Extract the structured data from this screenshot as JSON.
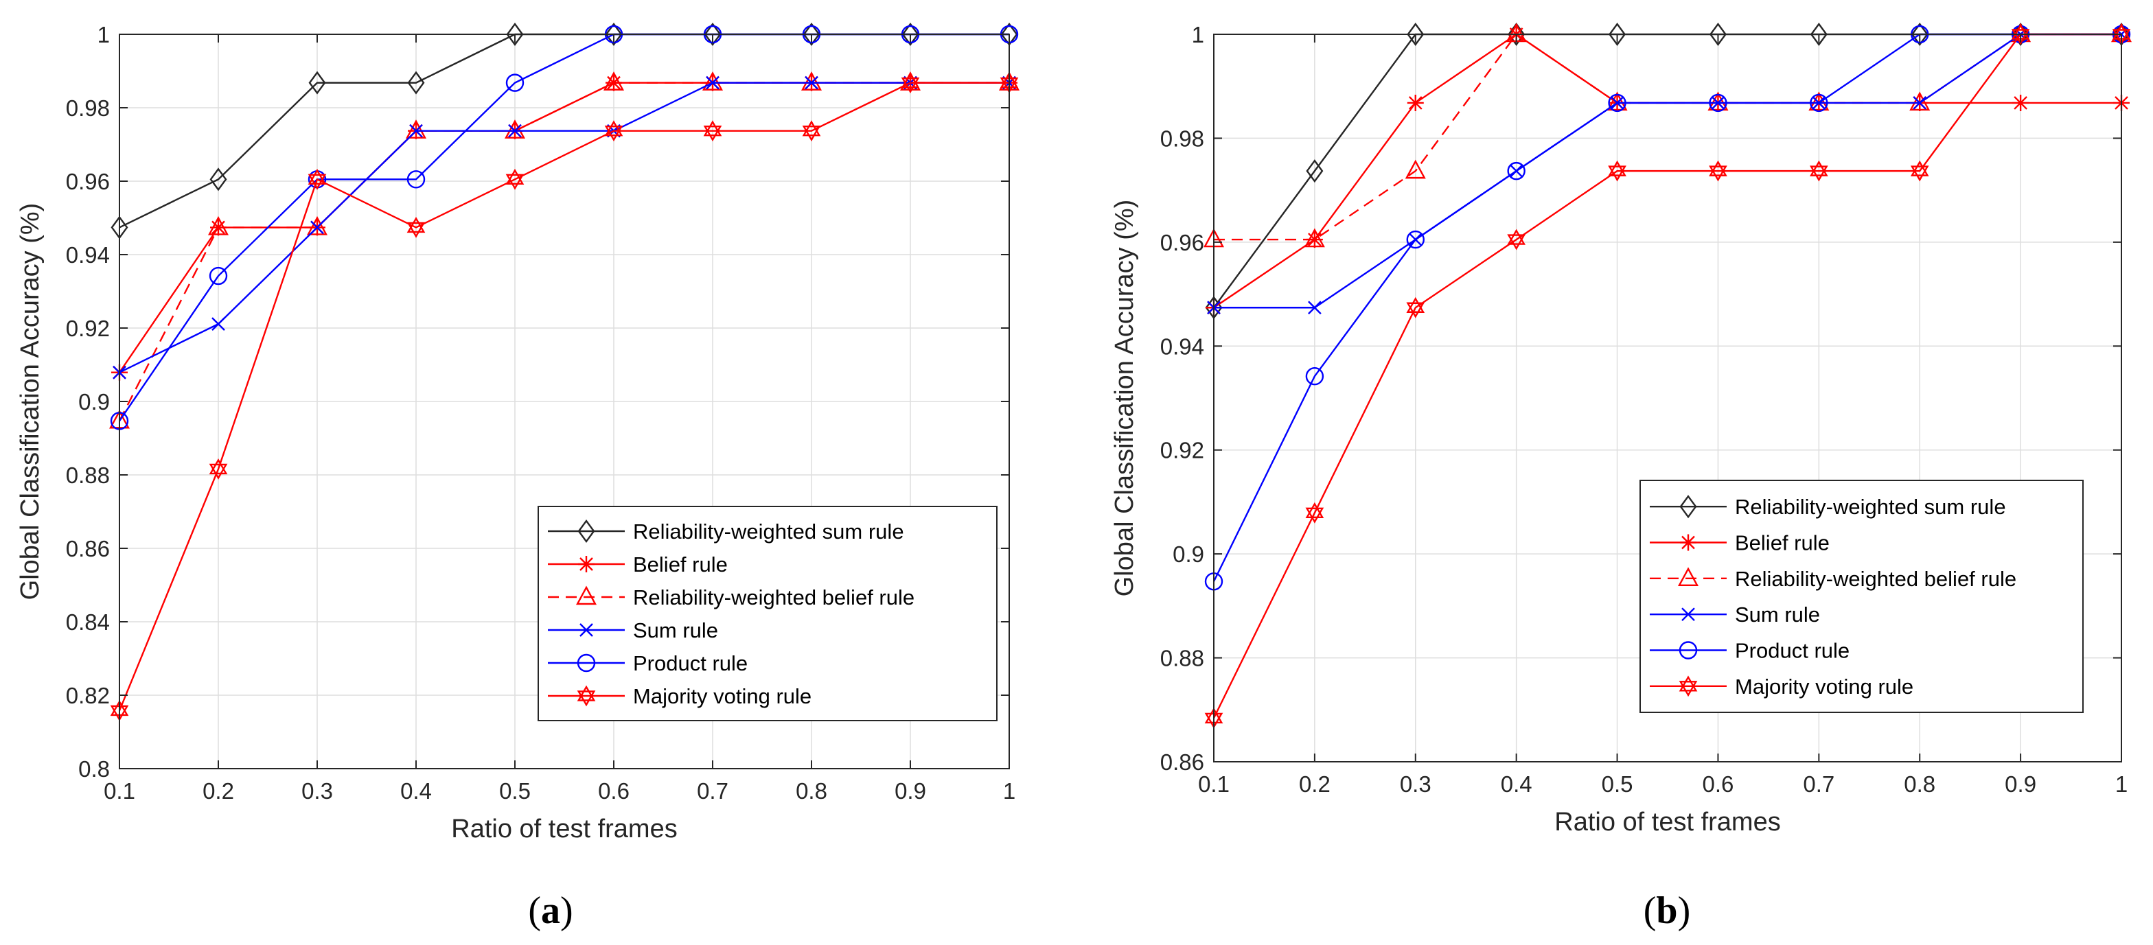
{
  "colors": {
    "black": "#262626",
    "red": "#ff0000",
    "blue": "#0000ff",
    "grid": "#dedede"
  },
  "chart_data": [
    {
      "type": "line",
      "panel_label": "a",
      "xlabel": "Ratio of test frames",
      "ylabel": "Global Classification Accuracy (%)",
      "xlim": [
        0.1,
        1
      ],
      "ylim": [
        0.8,
        1
      ],
      "xticks": [
        "0.1",
        "0.2",
        "0.3",
        "0.4",
        "0.5",
        "0.6",
        "0.7",
        "0.8",
        "0.9",
        "1"
      ],
      "yticks": [
        "0.8",
        "0.82",
        "0.84",
        "0.86",
        "0.88",
        "0.9",
        "0.92",
        "0.94",
        "0.96",
        "0.98",
        "1"
      ],
      "x": [
        0.1,
        0.2,
        0.3,
        0.4,
        0.5,
        0.6,
        0.7,
        0.8,
        0.9,
        1.0
      ],
      "legend_location": "bottom-right",
      "series": [
        {
          "name": "Reliability-weighted sum rule",
          "color": "black",
          "dash": "solid",
          "marker": "diamond",
          "values": [
            0.9474,
            0.9605,
            0.9868,
            0.9868,
            1.0,
            1.0,
            1.0,
            1.0,
            1.0,
            1.0
          ]
        },
        {
          "name": "Belief rule",
          "color": "red",
          "dash": "solid",
          "marker": "asterisk",
          "values": [
            0.9079,
            0.9474,
            0.9474,
            0.9737,
            0.9737,
            0.9868,
            0.9868,
            0.9868,
            0.9868,
            0.9868
          ]
        },
        {
          "name": "Reliability-weighted belief rule",
          "color": "red",
          "dash": "dashed",
          "marker": "triangle",
          "values": [
            0.8947,
            0.9474,
            0.9474,
            0.9737,
            0.9737,
            0.9868,
            0.9868,
            0.9868,
            0.9868,
            0.9868
          ]
        },
        {
          "name": "Sum rule",
          "color": "blue",
          "dash": "solid",
          "marker": "x",
          "values": [
            0.9079,
            0.9211,
            0.9474,
            0.9737,
            0.9737,
            0.9737,
            0.9868,
            0.9868,
            0.9868,
            0.9868
          ]
        },
        {
          "name": "Product rule",
          "color": "blue",
          "dash": "solid",
          "marker": "circle",
          "values": [
            0.8947,
            0.9342,
            0.9605,
            0.9605,
            0.9868,
            1.0,
            1.0,
            1.0,
            1.0,
            1.0
          ]
        },
        {
          "name": "Majority voting rule",
          "color": "red",
          "dash": "solid",
          "marker": "hexagram",
          "values": [
            0.8158,
            0.8816,
            0.9605,
            0.9474,
            0.9605,
            0.9737,
            0.9737,
            0.9737,
            0.9868,
            0.9868
          ]
        }
      ]
    },
    {
      "type": "line",
      "panel_label": "b",
      "xlabel": "Ratio of test frames",
      "ylabel": "Global Classification Accuracy (%)",
      "xlim": [
        0.1,
        1
      ],
      "ylim": [
        0.86,
        1
      ],
      "xticks": [
        "0.1",
        "0.2",
        "0.3",
        "0.4",
        "0.5",
        "0.6",
        "0.7",
        "0.8",
        "0.9",
        "1"
      ],
      "yticks": [
        "0.86",
        "0.88",
        "0.9",
        "0.92",
        "0.94",
        "0.96",
        "0.98",
        "1"
      ],
      "x": [
        0.1,
        0.2,
        0.3,
        0.4,
        0.5,
        0.6,
        0.7,
        0.8,
        0.9,
        1.0
      ],
      "legend_location": "bottom-right",
      "series": [
        {
          "name": "Reliability-weighted sum rule",
          "color": "black",
          "dash": "solid",
          "marker": "diamond",
          "values": [
            0.9474,
            0.9737,
            1.0,
            1.0,
            1.0,
            1.0,
            1.0,
            1.0,
            1.0,
            1.0
          ]
        },
        {
          "name": "Belief rule",
          "color": "red",
          "dash": "solid",
          "marker": "asterisk",
          "values": [
            0.9474,
            0.9605,
            0.9868,
            1.0,
            0.9868,
            0.9868,
            0.9868,
            0.9868,
            0.9868,
            0.9868
          ]
        },
        {
          "name": "Reliability-weighted belief rule",
          "color": "red",
          "dash": "dashed",
          "marker": "triangle",
          "values": [
            0.9605,
            0.9605,
            0.9737,
            1.0,
            0.9868,
            0.9868,
            0.9868,
            0.9868,
            1.0,
            1.0
          ]
        },
        {
          "name": "Sum rule",
          "color": "blue",
          "dash": "solid",
          "marker": "x",
          "values": [
            0.9474,
            0.9474,
            0.9605,
            0.9737,
            0.9868,
            0.9868,
            0.9868,
            0.9868,
            1.0,
            1.0
          ]
        },
        {
          "name": "Product rule",
          "color": "blue",
          "dash": "solid",
          "marker": "circle",
          "values": [
            0.8947,
            0.9342,
            0.9605,
            0.9737,
            0.9868,
            0.9868,
            0.9868,
            1.0,
            1.0,
            1.0
          ]
        },
        {
          "name": "Majority voting rule",
          "color": "red",
          "dash": "solid",
          "marker": "hexagram",
          "values": [
            0.8684,
            0.9079,
            0.9474,
            0.9605,
            0.9737,
            0.9737,
            0.9737,
            0.9737,
            1.0,
            1.0
          ]
        }
      ]
    }
  ]
}
